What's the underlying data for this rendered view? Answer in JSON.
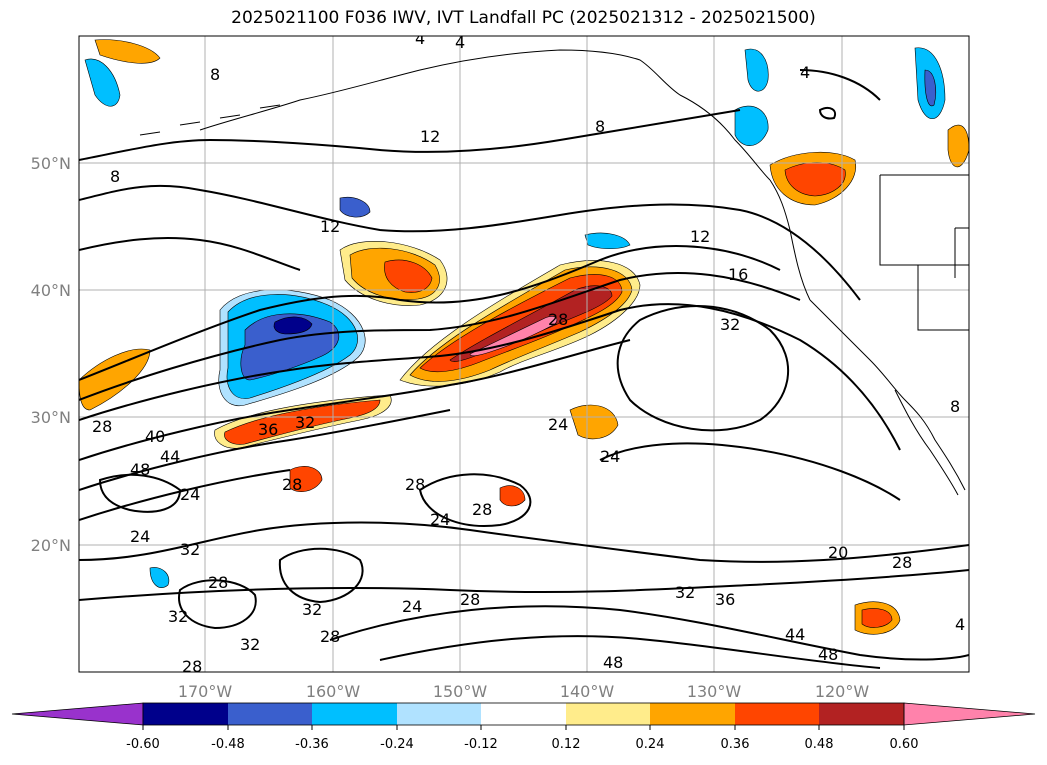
{
  "title": "2025021100 F036 IWV, IVT Landfall PC (2025021312 - 2025021500)",
  "axes": {
    "lon_labels": [
      "170°W",
      "160°W",
      "150°W",
      "140°W",
      "130°W",
      "120°W"
    ],
    "lat_labels": [
      "50°N",
      "40°N",
      "30°N",
      "20°N"
    ]
  },
  "colorbar": {
    "colors": [
      "#9932cc",
      "#00008b",
      "#3a5fcd",
      "#00bfff",
      "#b0e2ff",
      "#ffffff",
      "#ffec8b",
      "#ffa500",
      "#ff4500",
      "#b22222",
      "#ff82ab"
    ],
    "tick_labels": [
      "-0.60",
      "-0.48",
      "-0.36",
      "-0.24",
      "-0.12",
      "0.12",
      "0.24",
      "0.36",
      "0.48",
      "0.60"
    ]
  },
  "contour_labels": [
    "8",
    "4",
    "4",
    "12",
    "8",
    "12",
    "12",
    "16",
    "32",
    "28",
    "28",
    "36",
    "32",
    "40",
    "48",
    "44",
    "24",
    "28",
    "28",
    "24",
    "24",
    "28",
    "24",
    "24",
    "32",
    "28",
    "32",
    "32",
    "28",
    "32",
    "28",
    "24",
    "28",
    "20",
    "28",
    "32",
    "36",
    "44",
    "48",
    "48",
    "4",
    "8",
    "4",
    "8"
  ]
}
